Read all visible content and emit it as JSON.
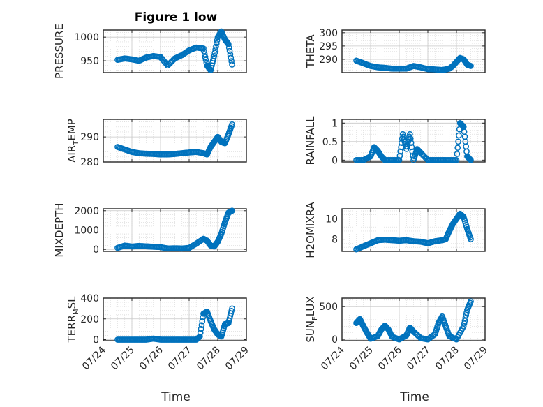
{
  "figure": {
    "title": "Figure 1 low",
    "marker_color": "#0072BD",
    "grid_color": "#d6d6d6",
    "axis_color": "#262626"
  },
  "chart_data": [
    {
      "type": "scatter",
      "ylabel": "PRESSURE",
      "ylim": [
        925,
        1015
      ],
      "yticks": [
        950,
        1000
      ],
      "x": [
        "2024-07-24T12:00",
        "2024-07-24T18:00",
        "2024-07-25T00:00",
        "2024-07-25T06:00",
        "2024-07-25T12:00",
        "2024-07-25T18:00",
        "2024-07-26T00:00",
        "2024-07-26T06:00",
        "2024-07-26T12:00",
        "2024-07-26T18:00",
        "2024-07-27T00:00",
        "2024-07-27T06:00",
        "2024-07-27T12:00",
        "2024-07-27T15:00",
        "2024-07-27T18:00",
        "2024-07-27T21:00",
        "2024-07-28T00:00",
        "2024-07-28T03:00",
        "2024-07-28T06:00",
        "2024-07-28T09:00",
        "2024-07-28T12:00"
      ],
      "y": [
        952,
        955,
        953,
        950,
        957,
        960,
        958,
        940,
        955,
        962,
        972,
        978,
        976,
        940,
        930,
        960,
        1000,
        1012,
        995,
        985,
        942
      ]
    },
    {
      "type": "scatter",
      "ylabel": "THETA",
      "ylim": [
        285,
        301
      ],
      "yticks": [
        290,
        295,
        300
      ],
      "x": [
        "2024-07-24T12:00",
        "2024-07-24T18:00",
        "2024-07-25T00:00",
        "2024-07-25T06:00",
        "2024-07-25T12:00",
        "2024-07-25T18:00",
        "2024-07-26T00:00",
        "2024-07-26T06:00",
        "2024-07-26T12:00",
        "2024-07-26T18:00",
        "2024-07-27T00:00",
        "2024-07-27T06:00",
        "2024-07-27T12:00",
        "2024-07-27T15:00",
        "2024-07-27T18:00",
        "2024-07-27T21:00",
        "2024-07-28T00:00",
        "2024-07-28T03:00",
        "2024-07-28T06:00",
        "2024-07-28T09:00",
        "2024-07-28T12:00"
      ],
      "y": [
        289.5,
        288.5,
        287.5,
        287,
        286.8,
        286.5,
        286.5,
        286.5,
        287.5,
        287,
        286.3,
        286.2,
        286,
        286.2,
        286.5,
        287.5,
        289,
        290.5,
        290,
        288,
        287.5
      ]
    },
    {
      "type": "scatter",
      "ylabel": "AIR_TEMP",
      "ylim": [
        280,
        297
      ],
      "yticks": [
        280,
        290
      ],
      "x": [
        "2024-07-24T12:00",
        "2024-07-24T18:00",
        "2024-07-25T00:00",
        "2024-07-25T06:00",
        "2024-07-25T12:00",
        "2024-07-25T18:00",
        "2024-07-26T00:00",
        "2024-07-26T06:00",
        "2024-07-26T12:00",
        "2024-07-26T18:00",
        "2024-07-27T00:00",
        "2024-07-27T06:00",
        "2024-07-27T12:00",
        "2024-07-27T15:00",
        "2024-07-27T18:00",
        "2024-07-27T21:00",
        "2024-07-28T00:00",
        "2024-07-28T03:00",
        "2024-07-28T06:00",
        "2024-07-28T09:00",
        "2024-07-28T12:00"
      ],
      "y": [
        286,
        285,
        284,
        283.5,
        283.3,
        283.2,
        283,
        283,
        283.2,
        283.5,
        283.8,
        284,
        283.5,
        283,
        286,
        288,
        290,
        288,
        287.5,
        291,
        295
      ]
    },
    {
      "type": "scatter",
      "ylabel": "RAINFALL",
      "ylim": [
        -0.05,
        1.1
      ],
      "yticks": [
        0,
        0.5,
        1
      ],
      "x": [
        "2024-07-24T12:00",
        "2024-07-24T18:00",
        "2024-07-25T00:00",
        "2024-07-25T03:00",
        "2024-07-25T06:00",
        "2024-07-25T09:00",
        "2024-07-25T12:00",
        "2024-07-25T18:00",
        "2024-07-26T00:00",
        "2024-07-26T03:00",
        "2024-07-26T06:00",
        "2024-07-26T09:00",
        "2024-07-26T12:00",
        "2024-07-26T15:00",
        "2024-07-26T18:00",
        "2024-07-27T00:00",
        "2024-07-27T06:00",
        "2024-07-27T12:00",
        "2024-07-27T18:00",
        "2024-07-28T00:00",
        "2024-07-28T03:00",
        "2024-07-28T06:00",
        "2024-07-28T09:00",
        "2024-07-28T12:00"
      ],
      "y": [
        0,
        0,
        0.1,
        0.35,
        0.25,
        0.1,
        0,
        0,
        0,
        0.7,
        0.3,
        0.7,
        0,
        0.3,
        0.2,
        0,
        0,
        0,
        0,
        0,
        1.0,
        0.9,
        0.1,
        0
      ]
    },
    {
      "type": "scatter",
      "ylabel": "MIXDEPTH",
      "ylim": [
        -100,
        2100
      ],
      "yticks": [
        0,
        1000,
        2000
      ],
      "x": [
        "2024-07-24T12:00",
        "2024-07-24T18:00",
        "2024-07-25T00:00",
        "2024-07-25T06:00",
        "2024-07-25T12:00",
        "2024-07-25T18:00",
        "2024-07-26T00:00",
        "2024-07-26T06:00",
        "2024-07-26T12:00",
        "2024-07-26T18:00",
        "2024-07-27T00:00",
        "2024-07-27T06:00",
        "2024-07-27T12:00",
        "2024-07-27T15:00",
        "2024-07-27T18:00",
        "2024-07-27T21:00",
        "2024-07-28T00:00",
        "2024-07-28T03:00",
        "2024-07-28T06:00",
        "2024-07-28T09:00",
        "2024-07-28T12:00"
      ],
      "y": [
        80,
        200,
        150,
        180,
        160,
        140,
        120,
        50,
        60,
        50,
        80,
        300,
        550,
        450,
        200,
        150,
        400,
        800,
        1400,
        1900,
        2000
      ]
    },
    {
      "type": "scatter",
      "ylabel": "H2OMIXRA",
      "ylim": [
        6.8,
        11
      ],
      "yticks": [
        8,
        10
      ],
      "x": [
        "2024-07-24T12:00",
        "2024-07-24T18:00",
        "2024-07-25T00:00",
        "2024-07-25T06:00",
        "2024-07-25T12:00",
        "2024-07-25T18:00",
        "2024-07-26T00:00",
        "2024-07-26T06:00",
        "2024-07-26T12:00",
        "2024-07-26T18:00",
        "2024-07-27T00:00",
        "2024-07-27T06:00",
        "2024-07-27T12:00",
        "2024-07-27T15:00",
        "2024-07-27T18:00",
        "2024-07-27T21:00",
        "2024-07-28T00:00",
        "2024-07-28T03:00",
        "2024-07-28T06:00",
        "2024-07-28T09:00",
        "2024-07-28T12:00"
      ],
      "y": [
        7.0,
        7.3,
        7.6,
        7.9,
        7.95,
        7.9,
        7.85,
        7.9,
        7.8,
        7.75,
        7.6,
        7.8,
        7.9,
        8.0,
        8.8,
        9.5,
        10.0,
        10.5,
        10.2,
        9.0,
        8.0
      ]
    },
    {
      "type": "scatter",
      "ylabel": "TERR_MSL",
      "ylim": [
        -10,
        400
      ],
      "yticks": [
        0,
        200,
        400
      ],
      "x": [
        "2024-07-24T12:00",
        "2024-07-24T18:00",
        "2024-07-25T00:00",
        "2024-07-25T06:00",
        "2024-07-25T12:00",
        "2024-07-25T18:00",
        "2024-07-26T00:00",
        "2024-07-26T06:00",
        "2024-07-26T12:00",
        "2024-07-26T18:00",
        "2024-07-27T00:00",
        "2024-07-27T06:00",
        "2024-07-27T09:00",
        "2024-07-27T12:00",
        "2024-07-27T15:00",
        "2024-07-27T18:00",
        "2024-07-27T21:00",
        "2024-07-28T00:00",
        "2024-07-28T03:00",
        "2024-07-28T06:00",
        "2024-07-28T09:00",
        "2024-07-28T12:00"
      ],
      "y": [
        0,
        0,
        0,
        0,
        0,
        10,
        0,
        0,
        0,
        0,
        0,
        0,
        30,
        250,
        270,
        180,
        100,
        50,
        30,
        150,
        160,
        300
      ]
    },
    {
      "type": "scatter",
      "ylabel": "SUN_FLUX",
      "ylim": [
        -20,
        630
      ],
      "yticks": [
        0,
        500
      ],
      "x": [
        "2024-07-24T12:00",
        "2024-07-24T15:00",
        "2024-07-24T18:00",
        "2024-07-24T21:00",
        "2024-07-25T00:00",
        "2024-07-25T06:00",
        "2024-07-25T09:00",
        "2024-07-25T12:00",
        "2024-07-25T15:00",
        "2024-07-25T18:00",
        "2024-07-26T00:00",
        "2024-07-26T06:00",
        "2024-07-26T09:00",
        "2024-07-26T12:00",
        "2024-07-26T18:00",
        "2024-07-27T00:00",
        "2024-07-27T06:00",
        "2024-07-27T09:00",
        "2024-07-27T12:00",
        "2024-07-27T15:00",
        "2024-07-27T18:00",
        "2024-07-28T00:00",
        "2024-07-28T06:00",
        "2024-07-28T09:00",
        "2024-07-28T12:00"
      ],
      "y": [
        250,
        310,
        200,
        100,
        10,
        50,
        150,
        210,
        150,
        40,
        0,
        60,
        180,
        120,
        20,
        0,
        80,
        250,
        350,
        200,
        50,
        0,
        200,
        450,
        580
      ]
    }
  ],
  "x_axis": {
    "start": "2024-07-24T00:00",
    "end": "2024-07-29T00:00",
    "ticks": [
      "07/24",
      "07/25",
      "07/26",
      "07/27",
      "07/28",
      "07/29"
    ],
    "xlabel": "Time"
  }
}
